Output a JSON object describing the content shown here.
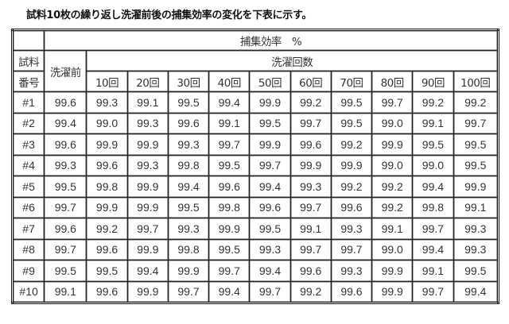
{
  "title": "試料10枚の繰り返し洗濯前後の捕集効率の変化を下表に示す。",
  "table": {
    "header_top": "捕集効率　%",
    "sample_label_1": "試料",
    "sample_label_2": "番号",
    "before_label": "洗濯前",
    "wash_count_label": "洗濯回数",
    "wash_columns": [
      "10回",
      "20回",
      "30回",
      "40回",
      "50回",
      "60回",
      "70回",
      "80回",
      "90回",
      "100回"
    ],
    "rows": [
      {
        "id": "#1",
        "before": "99.6",
        "values": [
          "99.3",
          "99.1",
          "99.5",
          "99.4",
          "99.9",
          "99.2",
          "99.5",
          "99.7",
          "99.2",
          "99.2"
        ]
      },
      {
        "id": "#2",
        "before": "99.4",
        "values": [
          "99.0",
          "99.3",
          "99.6",
          "99.1",
          "99.5",
          "99.7",
          "99.5",
          "99.0",
          "99.1",
          "99.7"
        ]
      },
      {
        "id": "#3",
        "before": "99.6",
        "values": [
          "99.9",
          "99.9",
          "99.3",
          "99.7",
          "99.9",
          "99.6",
          "99.2",
          "99.9",
          "99.5",
          "99.5"
        ]
      },
      {
        "id": "#4",
        "before": "99.3",
        "values": [
          "99.6",
          "99.3",
          "99.8",
          "99.5",
          "99.7",
          "99.9",
          "99.9",
          "99.0",
          "99.0",
          "99.5"
        ]
      },
      {
        "id": "#5",
        "before": "99.5",
        "values": [
          "99.8",
          "99.9",
          "99.4",
          "99.6",
          "99.4",
          "99.3",
          "99.2",
          "99.2",
          "99.4",
          "99.9"
        ]
      },
      {
        "id": "#6",
        "before": "99.7",
        "values": [
          "99.9",
          "99.9",
          "99.5",
          "99.8",
          "99.6",
          "99.7",
          "99.6",
          "99.2",
          "99.8",
          "99.1"
        ]
      },
      {
        "id": "#7",
        "before": "99.6",
        "values": [
          "99.2",
          "99.7",
          "99.3",
          "99.9",
          "99.5",
          "99.1",
          "99.3",
          "99.1",
          "99.7",
          "99.3"
        ]
      },
      {
        "id": "#8",
        "before": "99.7",
        "values": [
          "99.6",
          "99.9",
          "99.8",
          "99.5",
          "99.3",
          "99.7",
          "99.7",
          "99.0",
          "99.4",
          "99.3"
        ]
      },
      {
        "id": "#9",
        "before": "99.5",
        "values": [
          "99.5",
          "99.4",
          "99.9",
          "99.7",
          "99.4",
          "99.6",
          "99.3",
          "99.9",
          "99.1",
          "99.5"
        ]
      },
      {
        "id": "#10",
        "before": "99.1",
        "values": [
          "99.6",
          "99.9",
          "99.7",
          "99.4",
          "99.7",
          "99.2",
          "99.6",
          "99.9",
          "99.7",
          "99.4"
        ]
      }
    ]
  }
}
